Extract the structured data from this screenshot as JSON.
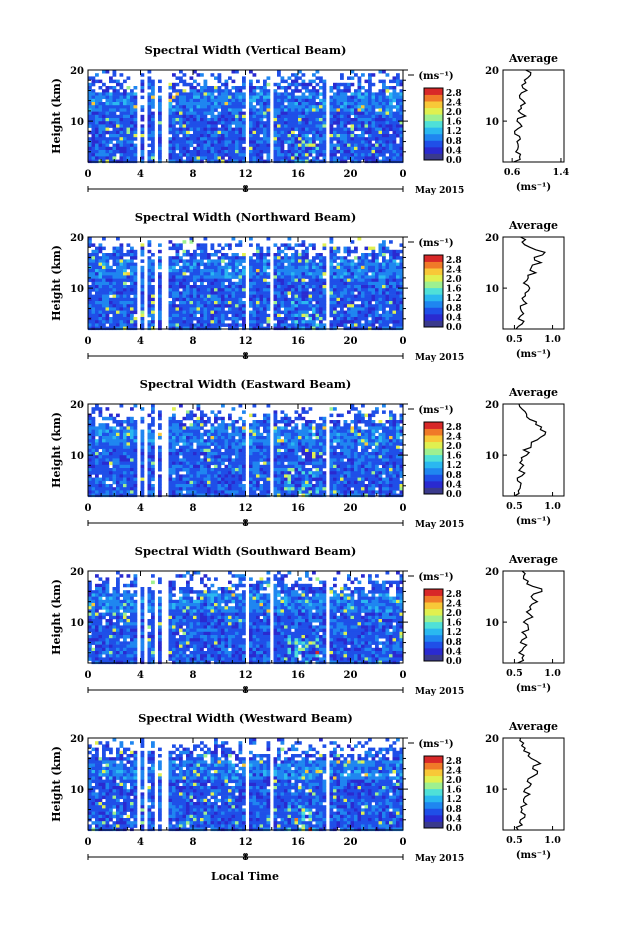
{
  "figure": {
    "xlabel": "Local Time",
    "date_label": "May 2015",
    "day_label": "8",
    "cbar_unit": "(ms⁻¹)",
    "avg_title": "Average",
    "avg_xlabel": "(ms⁻¹)",
    "ylabel": "Height (km)",
    "time_ticks": [
      "0",
      "4",
      "8",
      "12",
      "16",
      "20",
      "0"
    ],
    "height_ticks": [
      "10",
      "20"
    ],
    "cbar_ticks": [
      "0.0",
      "0.4",
      "0.8",
      "1.2",
      "1.6",
      "2.0",
      "2.4",
      "2.8"
    ],
    "colormap": [
      "#3a3a8c",
      "#2a2ad0",
      "#1f4fe8",
      "#1f86f0",
      "#2ab8f0",
      "#4fe0d8",
      "#9ef090",
      "#e0f050",
      "#f8c838",
      "#f07a28",
      "#d82828"
    ]
  },
  "chart_data": [
    {
      "type": "heatmap",
      "title": "Spectral Width (Vertical Beam)",
      "x_range": [
        0,
        24
      ],
      "y_range": [
        2,
        20
      ],
      "clim": [
        0,
        3.0
      ],
      "data_gaps_hours": [
        [
          1.9,
          2.1
        ],
        [
          3.5,
          3.8
        ],
        [
          4.2,
          4.5
        ],
        [
          5.0,
          5.3
        ],
        [
          5.5,
          5.9
        ],
        [
          11.9,
          12.2
        ],
        [
          13.8,
          14.1
        ],
        [
          18.0,
          18.3
        ]
      ],
      "average_profile": {
        "x_ticks": [
          "0.6",
          "1.4"
        ],
        "xlim": [
          0.45,
          1.45
        ],
        "heights_km": [
          2,
          3,
          4,
          5,
          6,
          7,
          8,
          9,
          10,
          11,
          12,
          13,
          14,
          15,
          16,
          17,
          18,
          19,
          20
        ],
        "values": [
          0.62,
          0.72,
          0.66,
          0.7,
          0.68,
          0.72,
          0.64,
          0.76,
          0.68,
          0.82,
          0.7,
          0.74,
          0.78,
          0.72,
          0.84,
          0.76,
          0.8,
          0.9,
          0.82
        ]
      }
    },
    {
      "type": "heatmap",
      "title": "Spectral Width (Northward Beam)",
      "x_range": [
        0,
        24
      ],
      "y_range": [
        2,
        20
      ],
      "clim": [
        0,
        3.0
      ],
      "data_gaps_hours": [
        [
          1.9,
          2.1
        ],
        [
          3.5,
          3.8
        ],
        [
          4.2,
          4.5
        ],
        [
          5.0,
          5.3
        ],
        [
          5.5,
          5.9
        ],
        [
          11.9,
          12.2
        ],
        [
          13.8,
          14.1
        ],
        [
          18.0,
          18.3
        ]
      ],
      "average_profile": {
        "x_ticks": [
          "0.5",
          "1.0"
        ],
        "xlim": [
          0.35,
          1.15
        ],
        "heights_km": [
          2,
          3,
          4,
          5,
          6,
          7,
          8,
          9,
          10,
          11,
          12,
          13,
          14,
          15,
          16,
          17,
          18,
          19,
          20
        ],
        "values": [
          0.52,
          0.6,
          0.55,
          0.62,
          0.58,
          0.66,
          0.6,
          0.64,
          0.7,
          0.62,
          0.68,
          0.78,
          0.72,
          0.85,
          0.76,
          0.9,
          0.7,
          0.6,
          0.58
        ]
      }
    },
    {
      "type": "heatmap",
      "title": "Spectral Width (Eastward Beam)",
      "x_range": [
        0,
        24
      ],
      "y_range": [
        2,
        20
      ],
      "clim": [
        0,
        3.0
      ],
      "data_gaps_hours": [
        [
          1.9,
          2.1
        ],
        [
          3.5,
          3.8
        ],
        [
          4.2,
          4.5
        ],
        [
          5.0,
          5.3
        ],
        [
          5.5,
          5.9
        ],
        [
          11.9,
          12.2
        ],
        [
          13.8,
          14.1
        ],
        [
          18.0,
          18.3
        ]
      ],
      "average_profile": {
        "x_ticks": [
          "0.5",
          "1.0"
        ],
        "xlim": [
          0.35,
          1.15
        ],
        "heights_km": [
          2,
          3,
          4,
          5,
          6,
          7,
          8,
          9,
          10,
          11,
          12,
          13,
          14,
          15,
          16,
          17,
          18,
          19,
          20
        ],
        "values": [
          0.5,
          0.55,
          0.58,
          0.54,
          0.6,
          0.56,
          0.62,
          0.6,
          0.66,
          0.62,
          0.72,
          0.8,
          0.9,
          0.84,
          0.78,
          0.7,
          0.66,
          0.6,
          0.56
        ]
      }
    },
    {
      "type": "heatmap",
      "title": "Spectral Width (Southward Beam)",
      "x_range": [
        0,
        24
      ],
      "y_range": [
        2,
        20
      ],
      "clim": [
        0,
        3.0
      ],
      "data_gaps_hours": [
        [
          1.9,
          2.1
        ],
        [
          3.5,
          3.8
        ],
        [
          4.2,
          4.5
        ],
        [
          5.0,
          5.3
        ],
        [
          5.5,
          5.9
        ],
        [
          11.9,
          12.2
        ],
        [
          13.8,
          14.1
        ],
        [
          18.0,
          18.3
        ]
      ],
      "average_profile": {
        "x_ticks": [
          "0.5",
          "1.0"
        ],
        "xlim": [
          0.35,
          1.15
        ],
        "heights_km": [
          2,
          3,
          4,
          5,
          6,
          7,
          8,
          9,
          10,
          11,
          12,
          13,
          14,
          15,
          16,
          17,
          18,
          19,
          20
        ],
        "values": [
          0.54,
          0.6,
          0.56,
          0.62,
          0.58,
          0.66,
          0.6,
          0.68,
          0.62,
          0.74,
          0.66,
          0.7,
          0.8,
          0.72,
          0.86,
          0.74,
          0.68,
          0.62,
          0.6
        ]
      }
    },
    {
      "type": "heatmap",
      "title": "Spectral Width (Westward Beam)",
      "x_range": [
        0,
        24
      ],
      "y_range": [
        2,
        20
      ],
      "clim": [
        0,
        3.0
      ],
      "data_gaps_hours": [
        [
          1.9,
          2.1
        ],
        [
          3.5,
          3.8
        ],
        [
          4.2,
          4.5
        ],
        [
          5.0,
          5.3
        ],
        [
          5.5,
          5.9
        ],
        [
          11.9,
          12.2
        ],
        [
          13.8,
          14.1
        ],
        [
          18.0,
          18.3
        ]
      ],
      "average_profile": {
        "x_ticks": [
          "0.5",
          "1.0"
        ],
        "xlim": [
          0.35,
          1.15
        ],
        "heights_km": [
          2,
          3,
          4,
          5,
          6,
          7,
          8,
          9,
          10,
          11,
          12,
          13,
          14,
          15,
          16,
          17,
          18,
          19,
          20
        ],
        "values": [
          0.55,
          0.6,
          0.58,
          0.64,
          0.6,
          0.66,
          0.62,
          0.7,
          0.64,
          0.72,
          0.68,
          0.8,
          0.74,
          0.84,
          0.72,
          0.7,
          0.64,
          0.62,
          0.58
        ]
      }
    }
  ]
}
